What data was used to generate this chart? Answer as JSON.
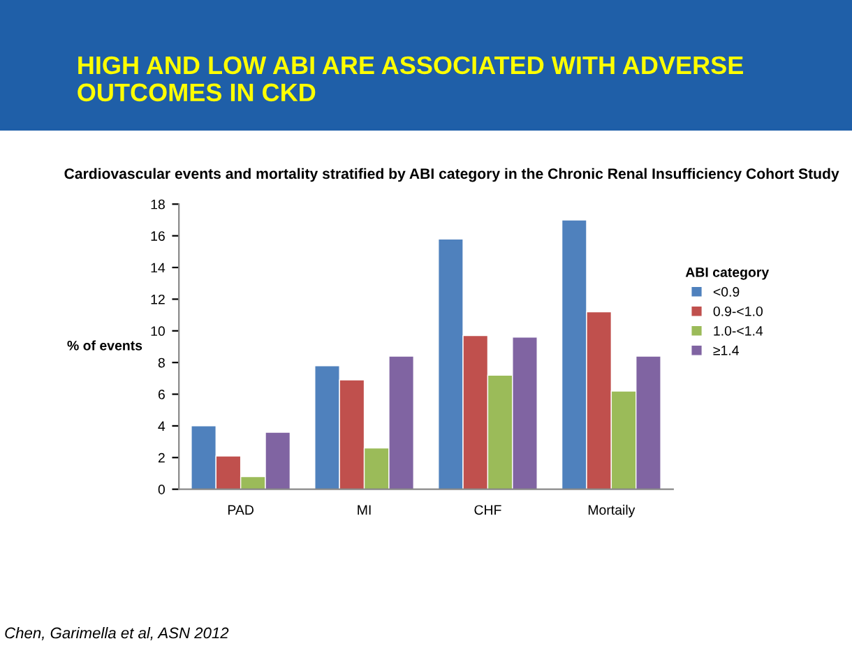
{
  "chart_data": {
    "type": "bar",
    "title": "HIGH AND LOW ABI ARE ASSOCIATED WITH ADVERSE OUTCOMES IN CKD",
    "subtitle": "Cardiovascular events and mortality stratified by ABI category in the Chronic Renal Insufficiency Cohort Study",
    "ylabel": "% of events",
    "legend_title": "ABI category",
    "categories": [
      "PAD",
      "MI",
      "CHF",
      "Mortaily"
    ],
    "series": [
      {
        "name": "<0.9",
        "color": "#4f81bd",
        "values": [
          4.0,
          7.8,
          15.8,
          17.0
        ]
      },
      {
        "name": "0.9-<1.0",
        "color": "#c0504d",
        "values": [
          2.1,
          6.9,
          9.7,
          11.2
        ]
      },
      {
        "name": "1.0-<1.4",
        "color": "#9bbb59",
        "values": [
          0.8,
          2.6,
          7.2,
          6.2
        ]
      },
      {
        "name": "≥1.4",
        "color": "#8064a2",
        "values": [
          3.6,
          8.4,
          9.6,
          8.4
        ]
      }
    ],
    "ylim": [
      0,
      18
    ],
    "yticks": [
      0,
      2,
      4,
      6,
      8,
      10,
      12,
      14,
      16,
      18
    ],
    "grid": false,
    "legend": "right",
    "annotations": [
      "Chen, Garimella et al, ASN 2012"
    ]
  }
}
